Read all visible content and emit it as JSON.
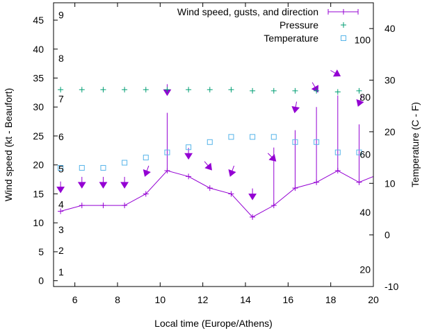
{
  "colors": {
    "wind": "#9400d3",
    "pressure": "#009e73",
    "temperature": "#56b4e9",
    "axis": "#000000"
  },
  "chart_data": {
    "type": "line",
    "xlabel": "Local time (Europe/Athens)",
    "ylabel": "Wind speed (kt - Beaufort)",
    "y2label": "Temperature (C - F)",
    "xlim": [
      5,
      20
    ],
    "ylim": [
      -1,
      48
    ],
    "y2lim": [
      -10,
      45
    ],
    "x_ticks": [
      6,
      8,
      10,
      12,
      14,
      16,
      18,
      20
    ],
    "y_ticks": [
      0,
      5,
      10,
      15,
      20,
      25,
      30,
      35,
      40,
      45
    ],
    "y2_ticks": [
      -10,
      0,
      10,
      20,
      30,
      40
    ],
    "beaufort_labels": [
      {
        "text": "1",
        "y": 1.5
      },
      {
        "text": "2",
        "y": 5.2
      },
      {
        "text": "3",
        "y": 8.8
      },
      {
        "text": "4",
        "y": 13.2
      },
      {
        "text": "5",
        "y": 19.3
      },
      {
        "text": "6",
        "y": 24.9
      },
      {
        "text": "7",
        "y": 31.4
      },
      {
        "text": "8",
        "y": 38.4
      },
      {
        "text": "9",
        "y": 45.9
      }
    ],
    "fahrenheit_labels": [
      {
        "text": "20",
        "y2": -6.7
      },
      {
        "text": "40",
        "y2": 4.4
      },
      {
        "text": "60",
        "y2": 15.6
      },
      {
        "text": "80",
        "y2": 26.7
      },
      {
        "text": "100",
        "y2": 37.8
      }
    ],
    "legend": [
      {
        "key": "wind",
        "label": "Wind speed, gusts, and direction"
      },
      {
        "key": "pressure",
        "label": "Pressure"
      },
      {
        "key": "temperature",
        "label": "Temperature"
      }
    ],
    "series": [
      {
        "name": "Wind speed, gusts, and direction",
        "key": "wind",
        "x": [
          5.33,
          6.33,
          7.33,
          8.33,
          9.33,
          10.33,
          11.33,
          12.33,
          13.33,
          14.33,
          15.33,
          16.33,
          17.33,
          18.33,
          19.33,
          20
        ],
        "values": [
          12,
          13,
          13,
          13,
          15,
          19,
          18,
          16,
          15,
          11,
          13,
          16,
          17,
          19,
          17,
          18
        ],
        "gusts": [
          12,
          13,
          13,
          13,
          15,
          29,
          18,
          16,
          15,
          11,
          23,
          26,
          30,
          32,
          27,
          null
        ],
        "direction_deg": [
          0,
          0,
          0,
          0,
          20,
          0,
          0,
          320,
          20,
          0,
          315,
          10,
          330,
          300,
          20,
          null
        ],
        "arrow_y": [
          15.7,
          16.5,
          16.5,
          16.5,
          18.5,
          32.5,
          21.5,
          19.5,
          18.5,
          14.5,
          21,
          29.5,
          33,
          35.6,
          30.6,
          null
        ]
      },
      {
        "name": "Pressure",
        "key": "pressure",
        "x": [
          5.33,
          6.33,
          7.33,
          8.33,
          9.33,
          10.33,
          11.33,
          12.33,
          13.33,
          14.33,
          15.33,
          16.33,
          17.33,
          18.33,
          19.33
        ],
        "values": [
          33,
          33,
          33,
          33,
          33,
          33,
          33,
          33,
          33,
          32.8,
          32.8,
          32.8,
          32.8,
          32.6,
          32.8
        ]
      },
      {
        "name": "Temperature",
        "key": "temperature",
        "x": [
          5.33,
          6.33,
          7.33,
          8.33,
          9.33,
          10.33,
          11.33,
          12.33,
          13.33,
          14.33,
          15.33,
          16.33,
          17.33,
          18.33,
          19.33
        ],
        "y2values": [
          13,
          13,
          13,
          14,
          15,
          16,
          17,
          18,
          19,
          19,
          19,
          18,
          18,
          16,
          16
        ]
      }
    ]
  }
}
